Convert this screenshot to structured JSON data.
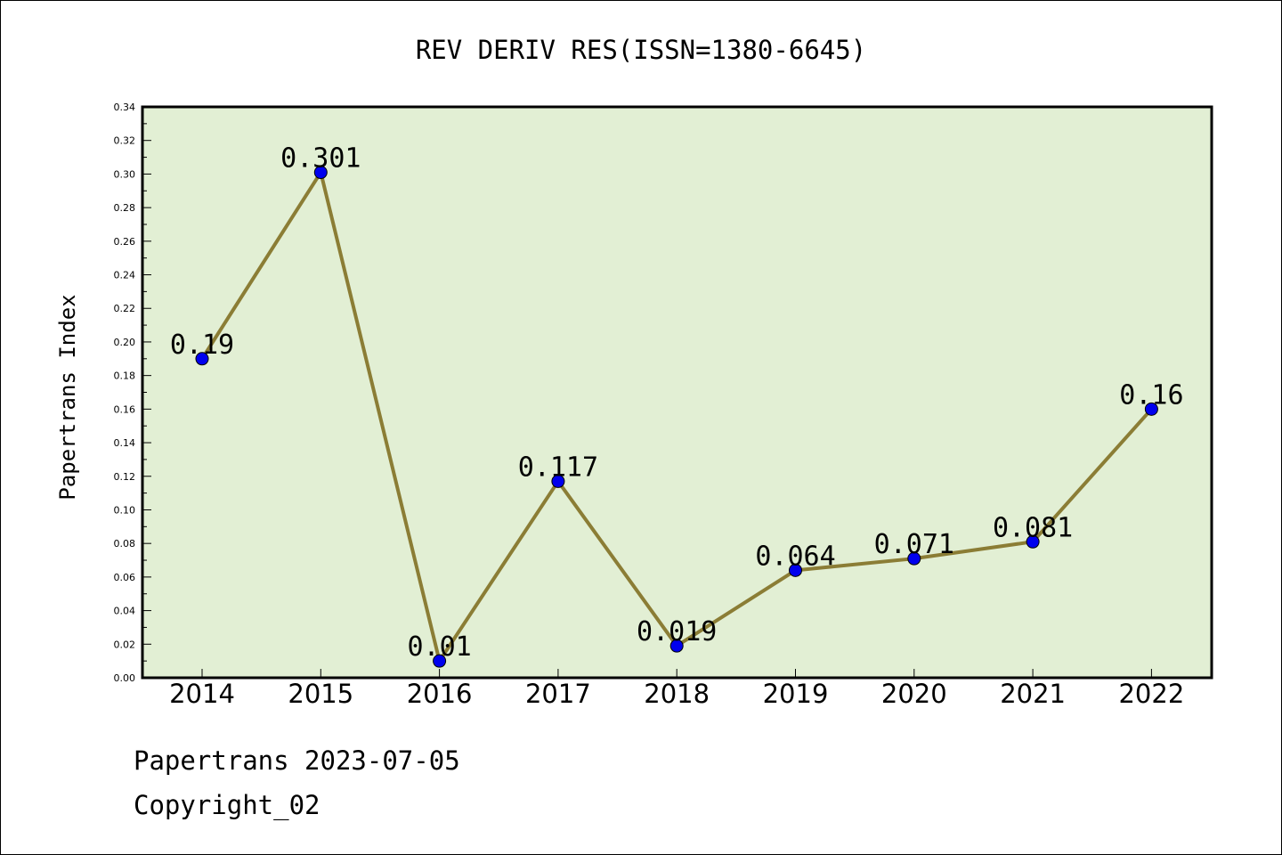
{
  "chart_data": {
    "type": "line",
    "title": "REV DERIV RES(ISSN=1380-6645)",
    "ylabel": "Papertrans Index",
    "xlabel": "",
    "categories": [
      "2014",
      "2015",
      "2016",
      "2017",
      "2018",
      "2019",
      "2020",
      "2021",
      "2022"
    ],
    "values": [
      0.19,
      0.301,
      0.01,
      0.117,
      0.019,
      0.064,
      0.071,
      0.081,
      0.16
    ],
    "data_labels": [
      "0.19",
      "0.301",
      "0.01",
      "0.117",
      "0.019",
      "0.064",
      "0.071",
      "0.081",
      "0.16"
    ],
    "ylim": [
      0,
      0.34
    ],
    "yticks": [
      "0.00",
      "0.02",
      "0.04",
      "0.06",
      "0.08",
      "0.10",
      "0.12",
      "0.14",
      "0.16",
      "0.18",
      "0.20",
      "0.22",
      "0.24",
      "0.26",
      "0.28",
      "0.30",
      "0.32",
      "0.34"
    ],
    "grid": false,
    "legend": "none",
    "colors": {
      "plot_background": "#e2efd4",
      "line": "#8b7d35",
      "marker": "#0000ee"
    }
  },
  "footer": {
    "source": "Papertrans 2023-07-05",
    "copyright": "Copyright_02"
  }
}
